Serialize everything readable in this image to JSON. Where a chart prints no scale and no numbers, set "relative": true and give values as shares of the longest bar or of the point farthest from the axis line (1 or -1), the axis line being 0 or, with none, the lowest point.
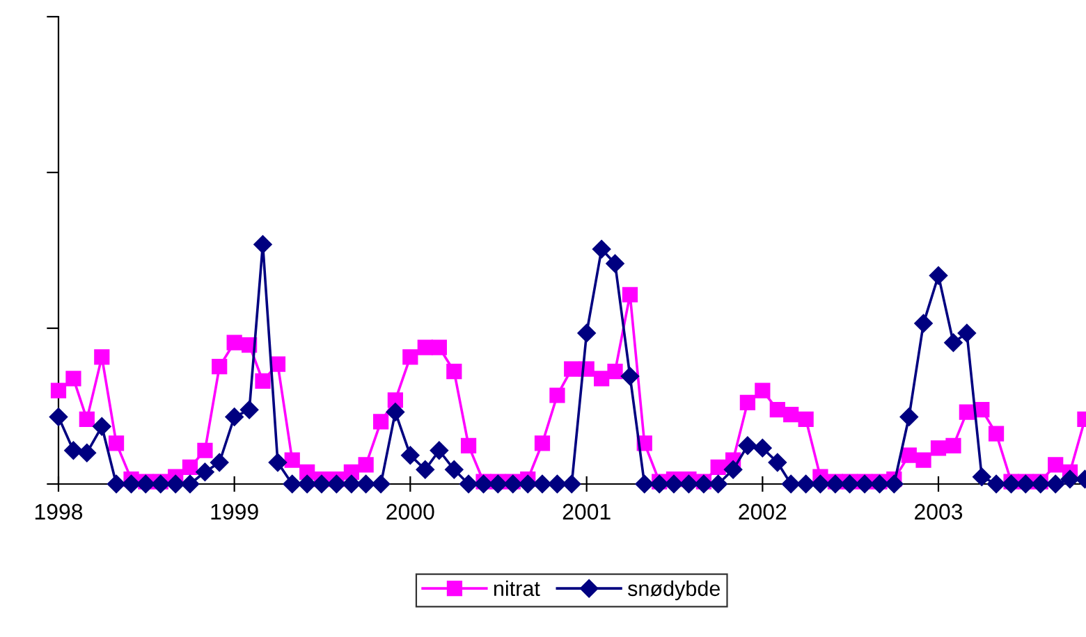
{
  "chart_data": {
    "type": "line",
    "relative": true,
    "x": [
      "1998-01",
      "1998-02",
      "1998-03",
      "1998-04",
      "1998-05",
      "1998-06",
      "1998-07",
      "1998-08",
      "1998-09",
      "1998-10",
      "1998-11",
      "1998-12",
      "1999-01",
      "1999-02",
      "1999-03",
      "1999-04",
      "1999-05",
      "1999-06",
      "1999-07",
      "1999-08",
      "1999-09",
      "1999-10",
      "1999-11",
      "1999-12",
      "2000-01",
      "2000-02",
      "2000-03",
      "2000-04",
      "2000-05",
      "2000-06",
      "2000-07",
      "2000-08",
      "2000-09",
      "2000-10",
      "2000-11",
      "2000-12",
      "2001-01",
      "2001-02",
      "2001-03",
      "2001-04",
      "2001-05",
      "2001-06",
      "2001-07",
      "2001-08",
      "2001-09",
      "2001-10",
      "2001-11",
      "2001-12",
      "2002-01",
      "2002-02",
      "2002-03",
      "2002-04",
      "2002-05",
      "2002-06",
      "2002-07",
      "2002-08",
      "2002-09",
      "2002-10",
      "2002-11",
      "2002-12",
      "2003-01",
      "2003-02",
      "2003-03",
      "2003-04",
      "2003-05",
      "2003-06",
      "2003-07",
      "2003-08",
      "2003-09",
      "2003-10",
      "2003-11"
    ],
    "series": [
      {
        "name": "nitrat",
        "color": "#ff00ff",
        "marker": "square",
        "values": [
          0.39,
          0.44,
          0.27,
          0.53,
          0.17,
          0.02,
          0.01,
          0.01,
          0.03,
          0.07,
          0.14,
          0.49,
          0.59,
          0.58,
          0.43,
          0.5,
          0.1,
          0.05,
          0.02,
          0.02,
          0.05,
          0.08,
          0.26,
          0.35,
          0.53,
          0.57,
          0.57,
          0.47,
          0.16,
          0.01,
          0.01,
          0.01,
          0.02,
          0.17,
          0.37,
          0.48,
          0.48,
          0.44,
          0.47,
          0.79,
          0.17,
          0.01,
          0.02,
          0.02,
          0.01,
          0.07,
          0.1,
          0.34,
          0.39,
          0.31,
          0.29,
          0.27,
          0.03,
          0.01,
          0.01,
          0.01,
          0.01,
          0.02,
          0.12,
          0.1,
          0.15,
          0.16,
          0.3,
          0.31,
          0.21,
          0.01,
          0.01,
          0.01,
          0.08,
          0.05,
          0.27
        ]
      },
      {
        "name": "snødybde",
        "color": "#000080",
        "marker": "diamond",
        "values": [
          0.28,
          0.14,
          0.13,
          0.24,
          0,
          0,
          0,
          0,
          0,
          0,
          0.05,
          0.09,
          0.28,
          0.31,
          1,
          0.09,
          0,
          0,
          0,
          0,
          0,
          0,
          0,
          0.3,
          0.12,
          0.06,
          0.14,
          0.06,
          0,
          0,
          0,
          0,
          0,
          0,
          0,
          0,
          0.63,
          0.98,
          0.92,
          0.45,
          0,
          0,
          0,
          0,
          0,
          0,
          0.06,
          0.16,
          0.15,
          0.09,
          0,
          0,
          0,
          0,
          0,
          0,
          0,
          0,
          0.28,
          0.67,
          0.87,
          0.59,
          0.63,
          0.03,
          0,
          0,
          0,
          0,
          0,
          0.02,
          0.02
        ]
      }
    ],
    "xlim": [
      "1998-01",
      "2003-11"
    ],
    "xticks": [
      {
        "value": "1998-01",
        "label": "1998"
      },
      {
        "value": "1999-01",
        "label": "1999"
      },
      {
        "value": "2000-01",
        "label": "2000"
      },
      {
        "value": "2001-01",
        "label": "2001"
      },
      {
        "value": "2002-01",
        "label": "2002"
      },
      {
        "value": "2003-01",
        "label": "2003"
      }
    ],
    "line_style": "solid",
    "legend": "bottom",
    "grid": false
  }
}
